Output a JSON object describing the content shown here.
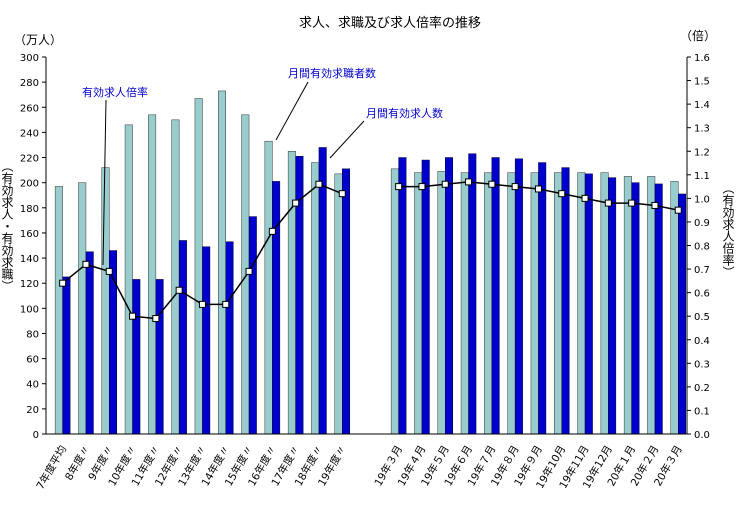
{
  "chart_data": {
    "type": "bar",
    "title": "求人、求職及び求人倍率の推移",
    "left_unit": "（万人）",
    "right_unit": "（倍）",
    "ylabel_left": "（有効求人・有効求職）",
    "ylabel_right": "（有効求人倍率）",
    "ylim_left": [
      0,
      300
    ],
    "ylim_right": [
      0,
      1.6
    ],
    "grid": false,
    "left_ticks": [
      "0",
      "20",
      "40",
      "60",
      "80",
      "100",
      "120",
      "140",
      "160",
      "180",
      "200",
      "220",
      "240",
      "260",
      "280",
      "300"
    ],
    "right_ticks": [
      "0.0",
      "0.1",
      "0.2",
      "0.3",
      "0.4",
      "0.5",
      "0.6",
      "0.7",
      "0.8",
      "0.9",
      "1.0",
      "1.1",
      "1.2",
      "1.3",
      "1.4",
      "1.5",
      "1.6"
    ],
    "categories": [
      "7年度平均",
      "8年度〃",
      "9年度〃",
      "10年度〃",
      "11年度〃",
      "12年度〃",
      "13年度〃",
      "14年度〃",
      "15年度〃",
      "16年度〃",
      "17年度〃",
      "18年度〃",
      "19年度〃",
      "19年３月",
      "19年４月",
      "19年５月",
      "19年６月",
      "19年７月",
      "19年８月",
      "19年９月",
      "19年10月",
      "19年11月",
      "19年12月",
      "20年１月",
      "20年２月",
      "20年３月"
    ],
    "series": [
      {
        "name": "月間有効求職者数",
        "type": "bar",
        "color": "#99cccc",
        "values": [
          197,
          200,
          212,
          246,
          254,
          250,
          267,
          273,
          254,
          233,
          225,
          216,
          207,
          211,
          208,
          209,
          208,
          208,
          208,
          208,
          208,
          208,
          208,
          205,
          205,
          201
        ]
      },
      {
        "name": "月間有効求人数",
        "type": "bar",
        "color": "#0000cc",
        "values": [
          125,
          145,
          146,
          123,
          123,
          154,
          149,
          153,
          173,
          201,
          221,
          228,
          211,
          220,
          218,
          220,
          223,
          220,
          219,
          216,
          212,
          207,
          204,
          200,
          199,
          191
        ]
      },
      {
        "name": "有効求人倍率",
        "type": "line",
        "axis": "right",
        "color": "#000000",
        "values": [
          0.64,
          0.72,
          0.69,
          0.5,
          0.49,
          0.61,
          0.55,
          0.55,
          0.69,
          0.86,
          0.98,
          1.06,
          1.02,
          1.05,
          1.05,
          1.06,
          1.07,
          1.06,
          1.05,
          1.04,
          1.02,
          1.0,
          0.98,
          0.98,
          0.97,
          0.95
        ]
      }
    ],
    "annotations": {
      "ratio": "有効求人倍率",
      "seekers": "月間有効求職者数",
      "openings": "月間有効求人数"
    }
  }
}
